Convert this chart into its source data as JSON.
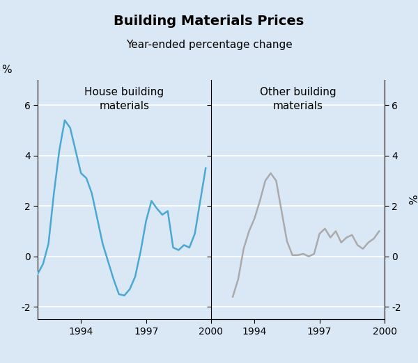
{
  "title": "Building Materials Prices",
  "subtitle": "Year-ended percentage change",
  "background_color": "#dae8f5",
  "panel_background": "#dae8f5",
  "ylim": [
    -2.5,
    7
  ],
  "yticks": [
    -2,
    0,
    2,
    4,
    6
  ],
  "ylabel": "%",
  "left_label": "House building\nmaterials",
  "right_label": "Other building\nmaterials",
  "left_color": "#4ba8d4",
  "right_color": "#aaaaaa",
  "left_x": [
    1992.0,
    1992.25,
    1992.5,
    1992.75,
    1993.0,
    1993.25,
    1993.5,
    1993.75,
    1994.0,
    1994.25,
    1994.5,
    1994.75,
    1995.0,
    1995.25,
    1995.5,
    1995.75,
    1996.0,
    1996.25,
    1996.5,
    1996.75,
    1997.0,
    1997.25,
    1997.5,
    1997.75,
    1998.0,
    1998.25,
    1998.5,
    1998.75,
    1999.0,
    1999.25,
    1999.5,
    1999.75
  ],
  "left_y": [
    -0.7,
    -0.3,
    0.5,
    2.5,
    4.2,
    5.4,
    5.1,
    4.2,
    3.3,
    3.1,
    2.5,
    1.5,
    0.5,
    -0.2,
    -0.9,
    -1.5,
    -1.55,
    -1.3,
    -0.8,
    0.2,
    1.4,
    2.2,
    1.9,
    1.65,
    1.8,
    0.35,
    0.25,
    0.45,
    0.35,
    0.9,
    2.2,
    3.5
  ],
  "right_x": [
    1993.0,
    1993.25,
    1993.5,
    1993.75,
    1994.0,
    1994.25,
    1994.5,
    1994.75,
    1995.0,
    1995.25,
    1995.5,
    1995.75,
    1996.0,
    1996.25,
    1996.5,
    1996.75,
    1997.0,
    1997.25,
    1997.5,
    1997.75,
    1998.0,
    1998.25,
    1998.5,
    1998.75,
    1999.0,
    1999.25,
    1999.5,
    1999.75
  ],
  "right_y": [
    -1.6,
    -0.9,
    0.3,
    1.0,
    1.5,
    2.2,
    3.0,
    3.3,
    3.0,
    1.8,
    0.6,
    0.05,
    0.05,
    0.1,
    0.0,
    0.1,
    0.9,
    1.1,
    0.75,
    1.0,
    0.55,
    0.75,
    0.85,
    0.45,
    0.3,
    0.55,
    0.7,
    1.0
  ],
  "xlim": [
    1992,
    2000
  ],
  "xticks": [
    1994,
    1997,
    2000
  ],
  "grid_color": "#ffffff",
  "line_width": 1.8,
  "title_fontsize": 14,
  "subtitle_fontsize": 11,
  "label_fontsize": 11,
  "tick_fontsize": 10
}
